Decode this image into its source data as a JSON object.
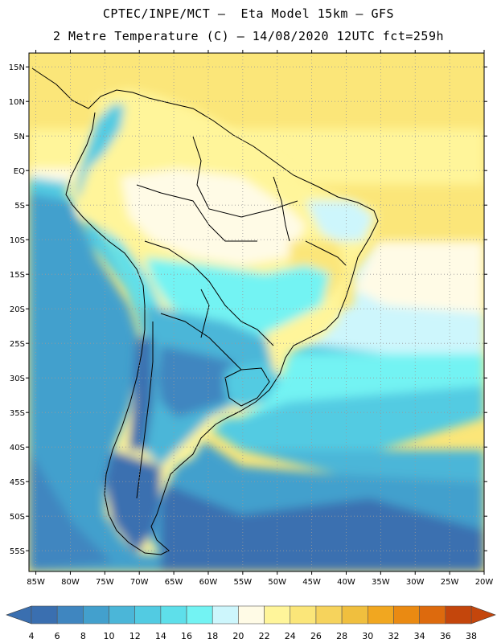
{
  "header": {
    "title_line1": "CPTEC/INPE/MCT –  Eta Model 15km – GFS",
    "title_line2": "2 Metre Temperature (C) – 14/08/2020 12UTC fct=259h"
  },
  "map": {
    "lon_range": [
      -86,
      -20
    ],
    "lat_range": [
      -58,
      17
    ],
    "lat_ticks": [
      {
        "value": 15,
        "label": "15N"
      },
      {
        "value": 10,
        "label": "10N"
      },
      {
        "value": 5,
        "label": "5N"
      },
      {
        "value": 0,
        "label": "EQ"
      },
      {
        "value": -5,
        "label": "5S"
      },
      {
        "value": -10,
        "label": "10S"
      },
      {
        "value": -15,
        "label": "15S"
      },
      {
        "value": -20,
        "label": "20S"
      },
      {
        "value": -25,
        "label": "25S"
      },
      {
        "value": -30,
        "label": "30S"
      },
      {
        "value": -35,
        "label": "35S"
      },
      {
        "value": -40,
        "label": "40S"
      },
      {
        "value": -45,
        "label": "45S"
      },
      {
        "value": -50,
        "label": "50S"
      },
      {
        "value": -55,
        "label": "55S"
      }
    ],
    "lon_ticks": [
      {
        "value": -85,
        "label": "85W"
      },
      {
        "value": -80,
        "label": "80W"
      },
      {
        "value": -75,
        "label": "75W"
      },
      {
        "value": -70,
        "label": "70W"
      },
      {
        "value": -65,
        "label": "65W"
      },
      {
        "value": -60,
        "label": "60W"
      },
      {
        "value": -55,
        "label": "55W"
      },
      {
        "value": -50,
        "label": "50W"
      },
      {
        "value": -45,
        "label": "45W"
      },
      {
        "value": -40,
        "label": "40W"
      },
      {
        "value": -35,
        "label": "35W"
      },
      {
        "value": -30,
        "label": "30W"
      },
      {
        "value": -25,
        "label": "25W"
      },
      {
        "value": -20,
        "label": "20W"
      }
    ],
    "grid": "dotted"
  },
  "colorbar": {
    "labels": [
      "4",
      "6",
      "8",
      "10",
      "12",
      "14",
      "16",
      "18",
      "20",
      "22",
      "24",
      "26",
      "28",
      "30",
      "32",
      "34",
      "36",
      "38"
    ],
    "colors": [
      "#3a6fb0",
      "#3f86c0",
      "#43a0cd",
      "#4bb6d8",
      "#52cbe2",
      "#5edfea",
      "#73f3f3",
      "#cdf6fc",
      "#fffbe6",
      "#fff59a",
      "#fbe679",
      "#f6d35c",
      "#f0bf3e",
      "#f1a720",
      "#ea8a12",
      "#dd6a0d",
      "#c4460c"
    ],
    "low_color": "#3a6fb0",
    "high_color": "#c4460c"
  }
}
